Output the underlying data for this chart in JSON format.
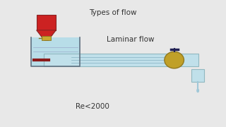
{
  "bg_color": "#e8e8e8",
  "title": "Types of flow",
  "label_laminar": "Laminar flow",
  "label_re": "Re<2000",
  "title_fontsize": 7.5,
  "label_fontsize": 7.5,
  "re_fontsize": 7.5,
  "funnel_color": "#cc2222",
  "funnel_edge": "#882222",
  "valve_color": "#c8a830",
  "pipe_color": "#8b1a1a",
  "tank_water_color": "#b8dde8",
  "tank_edge_color": "#607080",
  "pipe_water_color": "#c0e0ea",
  "pipe_edge_color": "#90b8c0",
  "ball_color": "#c0a028",
  "ball_edge": "#907820",
  "handle_color": "#222255",
  "elbow_color": "#c0e0ea",
  "drip_color": "#a0c8d8"
}
